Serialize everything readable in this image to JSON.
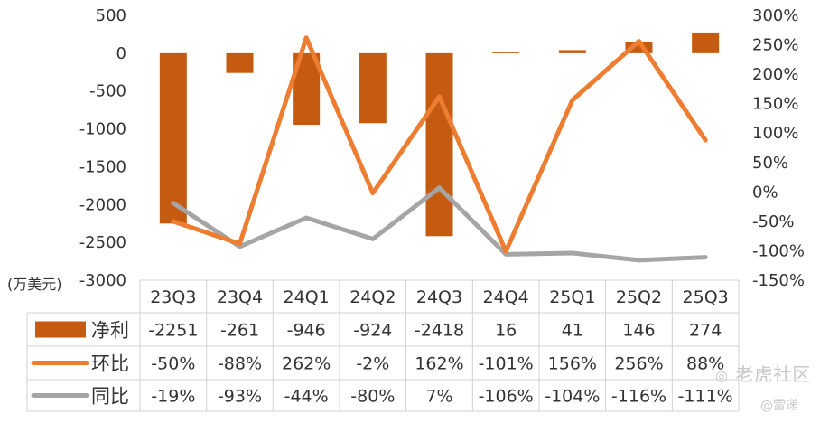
{
  "chart_data": {
    "type": "bar",
    "categories": [
      "23Q3",
      "23Q4",
      "24Q1",
      "24Q2",
      "24Q3",
      "24Q4",
      "25Q1",
      "25Q2",
      "25Q3"
    ],
    "unit_label": "(万美元)",
    "left_axis": {
      "ylim": [
        -3000,
        500
      ],
      "ticks": [
        "500",
        "0",
        "-500",
        "-1000",
        "-1500",
        "-2000",
        "-2500",
        "-3000"
      ],
      "tick_values": [
        500,
        0,
        -500,
        -1000,
        -1500,
        -2000,
        -2500,
        -3000
      ]
    },
    "right_axis": {
      "ylim": [
        -150,
        300
      ],
      "ticks": [
        "300%",
        "250%",
        "200%",
        "150%",
        "100%",
        "50%",
        "0%",
        "-50%",
        "-100%",
        "-150%"
      ],
      "tick_values": [
        300,
        250,
        200,
        150,
        100,
        50,
        0,
        -50,
        -100,
        -150
      ]
    },
    "series": [
      {
        "name": "净利",
        "kind": "bar",
        "axis": "left",
        "color": "#c55a11",
        "values": [
          -2251,
          -261,
          -946,
          -924,
          -2418,
          16,
          41,
          146,
          274
        ],
        "labels": [
          "-2251",
          "-261",
          "-946",
          "-924",
          "-2418",
          "16",
          "41",
          "146",
          "274"
        ]
      },
      {
        "name": "环比",
        "kind": "line",
        "axis": "right",
        "color": "#ed7d31",
        "values": [
          -50,
          -88,
          262,
          -2,
          162,
          -101,
          156,
          256,
          88
        ],
        "labels": [
          "-50%",
          "-88%",
          "262%",
          "-2%",
          "162%",
          "-101%",
          "156%",
          "256%",
          "88%"
        ]
      },
      {
        "name": "同比",
        "kind": "line",
        "axis": "right",
        "color": "#a5a5a5",
        "values": [
          -19,
          -93,
          -44,
          -80,
          7,
          -106,
          -104,
          -116,
          -111
        ],
        "labels": [
          "-19%",
          "-93%",
          "-44%",
          "-80%",
          "7%",
          "-106%",
          "-104%",
          "-116%",
          "-111%"
        ]
      }
    ],
    "grid": false,
    "legend": "table-left"
  },
  "watermark": {
    "brand": "老虎社区",
    "author": "@雷递"
  }
}
